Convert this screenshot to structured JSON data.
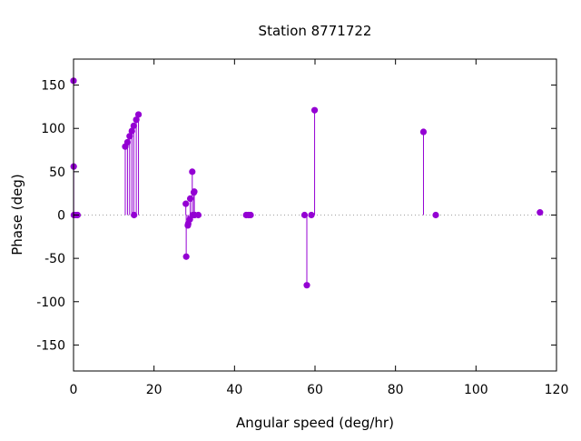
{
  "chart_data": {
    "type": "scatter",
    "style": "impulses-with-points",
    "title": "Station 8771722",
    "xlabel": "Angular speed (deg/hr)",
    "ylabel": "Phase (deg)",
    "xlim": [
      0,
      120
    ],
    "ylim": [
      -180,
      180
    ],
    "xticks": [
      0,
      20,
      40,
      60,
      80,
      100,
      120
    ],
    "yticks": [
      -150,
      -100,
      -50,
      0,
      50,
      100,
      150
    ],
    "grid": false,
    "zero_line": "dotted",
    "series": [
      {
        "color": "#9400d3",
        "points": [
          {
            "x": 0.0,
            "y": 155
          },
          {
            "x": 0.04,
            "y": 56
          },
          {
            "x": 0.08,
            "y": 0
          },
          {
            "x": 0.5,
            "y": 0
          },
          {
            "x": 1.0,
            "y": 0
          },
          {
            "x": 12.85,
            "y": 79
          },
          {
            "x": 13.4,
            "y": 84
          },
          {
            "x": 13.94,
            "y": 91
          },
          {
            "x": 14.49,
            "y": 97
          },
          {
            "x": 14.96,
            "y": 103
          },
          {
            "x": 15.04,
            "y": 0
          },
          {
            "x": 15.59,
            "y": 110
          },
          {
            "x": 16.14,
            "y": 116
          },
          {
            "x": 27.9,
            "y": 13
          },
          {
            "x": 28.0,
            "y": -48
          },
          {
            "x": 28.4,
            "y": -12
          },
          {
            "x": 28.5,
            "y": -10
          },
          {
            "x": 28.9,
            "y": -5
          },
          {
            "x": 29.0,
            "y": 19
          },
          {
            "x": 29.5,
            "y": 50
          },
          {
            "x": 29.6,
            "y": 0
          },
          {
            "x": 29.9,
            "y": 26
          },
          {
            "x": 30.0,
            "y": 27
          },
          {
            "x": 30.1,
            "y": 0
          },
          {
            "x": 31.0,
            "y": 0
          },
          {
            "x": 42.9,
            "y": 0
          },
          {
            "x": 43.5,
            "y": 0
          },
          {
            "x": 44.0,
            "y": 0
          },
          {
            "x": 57.4,
            "y": 0
          },
          {
            "x": 57.97,
            "y": -81
          },
          {
            "x": 59.1,
            "y": 0
          },
          {
            "x": 59.9,
            "y": 121
          },
          {
            "x": 86.95,
            "y": 96
          },
          {
            "x": 90.0,
            "y": 0
          },
          {
            "x": 115.9,
            "y": 3
          }
        ]
      }
    ]
  }
}
